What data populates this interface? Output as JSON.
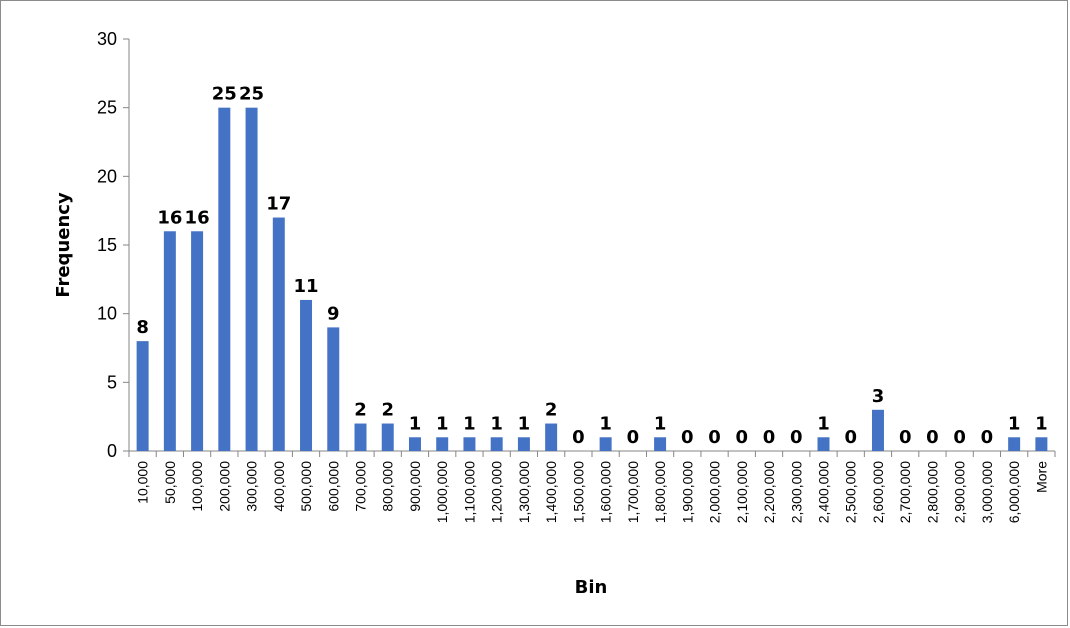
{
  "chart_data": {
    "type": "bar",
    "xlabel": "Bin",
    "ylabel": "Frequency",
    "ylim": [
      0,
      30
    ],
    "yticks": [
      0,
      5,
      10,
      15,
      20,
      25,
      30
    ],
    "grid": false,
    "legend": "none",
    "bar_color": "#4472C4",
    "categories": [
      "10,000",
      "50,000",
      "100,000",
      "200,000",
      "300,000",
      "400,000",
      "500,000",
      "600,000",
      "700,000",
      "800,000",
      "900,000",
      "1,000,000",
      "1,100,000",
      "1,200,000",
      "1,300,000",
      "1,400,000",
      "1,500,000",
      "1,600,000",
      "1,700,000",
      "1,800,000",
      "1,900,000",
      "2,000,000",
      "2,100,000",
      "2,200,000",
      "2,300,000",
      "2,400,000",
      "2,500,000",
      "2,600,000",
      "2,700,000",
      "2,800,000",
      "2,900,000",
      "3,000,000",
      "6,000,000",
      "More"
    ],
    "values": [
      8,
      16,
      16,
      25,
      25,
      17,
      11,
      9,
      2,
      2,
      1,
      1,
      1,
      1,
      1,
      2,
      0,
      1,
      0,
      1,
      0,
      0,
      0,
      0,
      0,
      1,
      0,
      3,
      0,
      0,
      0,
      0,
      1,
      1
    ]
  }
}
